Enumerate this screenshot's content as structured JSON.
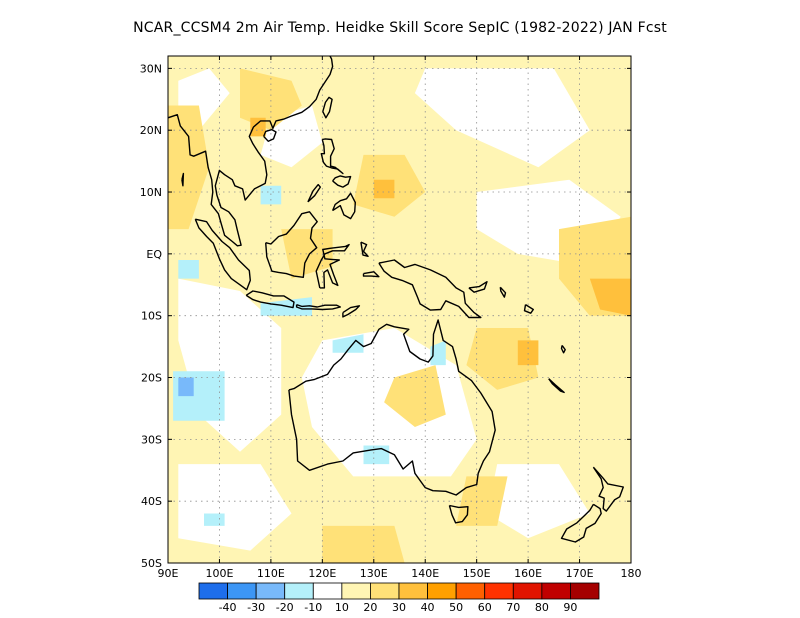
{
  "title": "NCAR_CCSM4  2m Air Temp. Heidke Skill Score SepIC (1982-2022) JAN Fcst",
  "map": {
    "lon_range": [
      90,
      180
    ],
    "lat_range": [
      -50,
      32
    ],
    "lon_ticks": [
      {
        "v": 90,
        "label": "90E"
      },
      {
        "v": 100,
        "label": "100E"
      },
      {
        "v": 110,
        "label": "110E"
      },
      {
        "v": 120,
        "label": "120E"
      },
      {
        "v": 130,
        "label": "130E"
      },
      {
        "v": 140,
        "label": "140E"
      },
      {
        "v": 150,
        "label": "150E"
      },
      {
        "v": 160,
        "label": "160E"
      },
      {
        "v": 170,
        "label": "170E"
      },
      {
        "v": 180,
        "label": "180"
      }
    ],
    "lat_ticks": [
      {
        "v": 30,
        "label": "30N"
      },
      {
        "v": 20,
        "label": "20N"
      },
      {
        "v": 10,
        "label": "10N"
      },
      {
        "v": 0,
        "label": "EQ"
      },
      {
        "v": -10,
        "label": "10S"
      },
      {
        "v": -20,
        "label": "20S"
      },
      {
        "v": -30,
        "label": "30S"
      },
      {
        "v": -40,
        "label": "40S"
      },
      {
        "v": -50,
        "label": "50S"
      }
    ],
    "grid": true
  },
  "colorbar": {
    "colors": [
      "#1e6eeb",
      "#3c96f5",
      "#78b9fa",
      "#b4f0fa",
      "#ffffff",
      "#fff5b4",
      "#ffe178",
      "#ffc03c",
      "#ffa000",
      "#ff6000",
      "#ff3200",
      "#e11400",
      "#c00000",
      "#a50000"
    ],
    "labels": [
      "-40",
      "-30",
      "-20",
      "-10",
      "10",
      "20",
      "30",
      "40",
      "50",
      "60",
      "70",
      "80",
      "90"
    ]
  },
  "regions": {
    "warm_light": "#fff5b4",
    "warm_mid": "#ffe178",
    "warm_strong": "#ffc03c",
    "cool_light": "#b4f0fa",
    "cool_mid": "#78b9fa"
  }
}
